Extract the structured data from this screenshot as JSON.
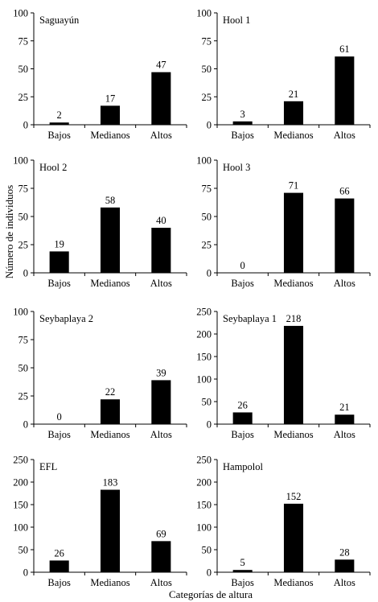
{
  "figure": {
    "ylabel": "Número de individuos",
    "xlabel": "Categorías de altura"
  },
  "chart_data": [
    {
      "type": "bar",
      "title": "Saguayún",
      "categories": [
        "Bajos",
        "Medianos",
        "Altos"
      ],
      "values": [
        2,
        17,
        47
      ],
      "ylim": [
        0,
        100
      ],
      "yticks": [
        0,
        25,
        50,
        75,
        100
      ],
      "bar_color": "#000000"
    },
    {
      "type": "bar",
      "title": "Hool 1",
      "categories": [
        "Bajos",
        "Medianos",
        "Altos"
      ],
      "values": [
        3,
        21,
        61
      ],
      "ylim": [
        0,
        100
      ],
      "yticks": [
        0,
        25,
        50,
        75,
        100
      ],
      "bar_color": "#000000"
    },
    {
      "type": "bar",
      "title": "Hool 2",
      "categories": [
        "Bajos",
        "Medianos",
        "Altos"
      ],
      "values": [
        19,
        58,
        40
      ],
      "ylim": [
        0,
        100
      ],
      "yticks": [
        0,
        25,
        50,
        75,
        100
      ],
      "bar_color": "#000000"
    },
    {
      "type": "bar",
      "title": "Hool 3",
      "categories": [
        "Bajos",
        "Medianos",
        "Altos"
      ],
      "values": [
        0,
        71,
        66
      ],
      "ylim": [
        0,
        100
      ],
      "yticks": [
        0,
        25,
        50,
        75,
        100
      ],
      "bar_color": "#000000"
    },
    {
      "type": "bar",
      "title": "Seybaplaya 2",
      "categories": [
        "Bajos",
        "Medianos",
        "Altos"
      ],
      "values": [
        0,
        22,
        39
      ],
      "ylim": [
        0,
        100
      ],
      "yticks": [
        0,
        25,
        50,
        75,
        100
      ],
      "bar_color": "#000000"
    },
    {
      "type": "bar",
      "title": "Seybaplaya 1",
      "categories": [
        "Bajos",
        "Medianos",
        "Altos"
      ],
      "values": [
        26,
        218,
        21
      ],
      "ylim": [
        0,
        250
      ],
      "yticks": [
        0,
        50,
        100,
        150,
        200,
        250
      ],
      "bar_color": "#000000"
    },
    {
      "type": "bar",
      "title": "EFL",
      "categories": [
        "Bajos",
        "Medianos",
        "Altos"
      ],
      "values": [
        26,
        183,
        69
      ],
      "ylim": [
        0,
        250
      ],
      "yticks": [
        0,
        50,
        100,
        150,
        200,
        250
      ],
      "bar_color": "#000000"
    },
    {
      "type": "bar",
      "title": "Hampolol",
      "categories": [
        "Bajos",
        "Medianos",
        "Altos"
      ],
      "values": [
        5,
        152,
        28
      ],
      "ylim": [
        0,
        250
      ],
      "yticks": [
        0,
        50,
        100,
        150,
        200,
        250
      ],
      "bar_color": "#000000"
    }
  ]
}
